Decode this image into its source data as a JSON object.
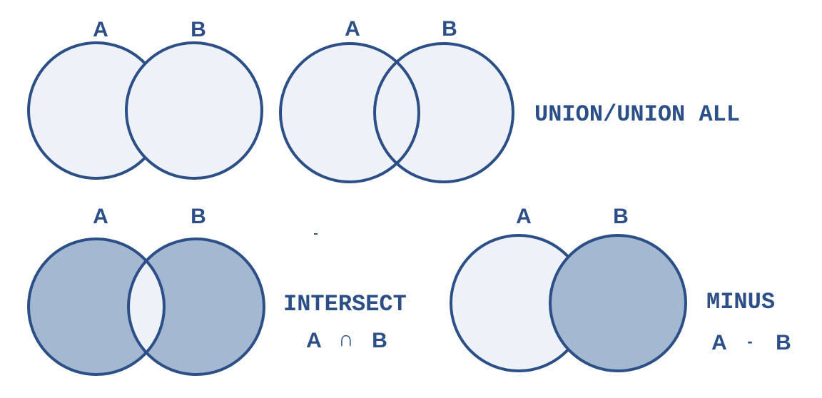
{
  "colors": {
    "outline": "#2b4f86",
    "light_fill": "#eef2f8",
    "dark_fill": "#a5b8d1",
    "text": "#2b4f86"
  },
  "sets": {
    "a": "A",
    "b": "B"
  },
  "diagrams": {
    "separate": {
      "label_a": "A",
      "label_b": "B"
    },
    "union": {
      "label_a": "A",
      "label_b": "B",
      "title": "UNION/UNION ALL"
    },
    "intersect": {
      "label_a": "A",
      "label_b": "B",
      "title": "INTERSECT",
      "formula_a": "A",
      "formula_op": "∩",
      "formula_b": "B"
    },
    "minus": {
      "label_a": "A",
      "label_b": "B",
      "title": "MINUS",
      "formula_a": "A",
      "formula_op": "-",
      "formula_b": "B"
    }
  }
}
